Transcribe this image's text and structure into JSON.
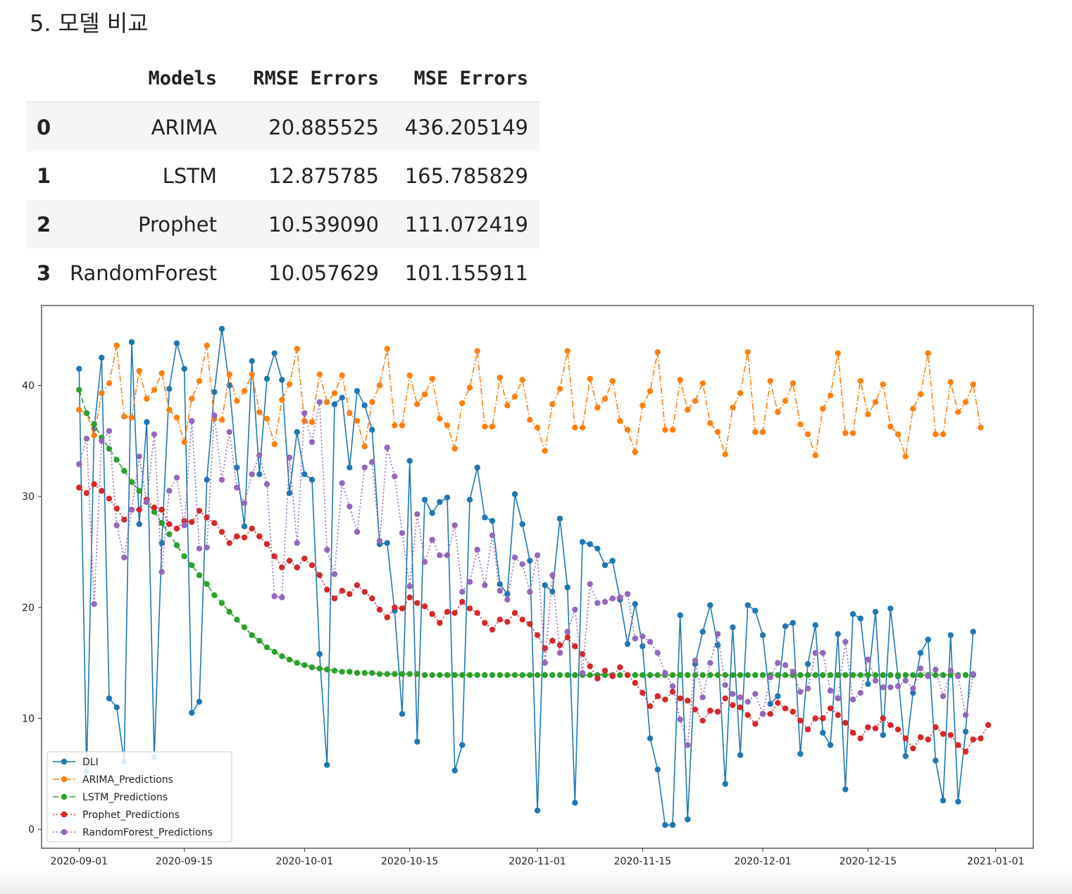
{
  "heading": "5. 모델 비교",
  "results_table": {
    "columns": [
      "Models",
      "RMSE Errors",
      "MSE Errors"
    ],
    "rows": [
      {
        "index": "0",
        "model": "ARIMA",
        "rmse": "20.885525",
        "mse": "436.205149"
      },
      {
        "index": "1",
        "model": "LSTM",
        "rmse": "12.875785",
        "mse": "165.785829"
      },
      {
        "index": "2",
        "model": "Prophet",
        "rmse": "10.539090",
        "mse": "111.072419"
      },
      {
        "index": "3",
        "model": "RandomForest",
        "rmse": "10.057629",
        "mse": "101.155911"
      }
    ]
  },
  "chart_data": {
    "type": "line",
    "title": "",
    "xlabel": "",
    "ylabel": "",
    "xlim": [
      "2020-08-27",
      "2021-01-06"
    ],
    "ylim": [
      -1.7,
      47.2
    ],
    "x_start": "2020-09-01",
    "x_ticks": [
      "2020-09-01",
      "2020-09-15",
      "2020-10-01",
      "2020-10-15",
      "2020-11-01",
      "2020-11-15",
      "2020-12-01",
      "2020-12-15",
      "2021-01-01"
    ],
    "y_ticks": [
      0,
      10,
      20,
      30,
      40
    ],
    "grid": false,
    "legend_position": "lower-left",
    "series": [
      {
        "name": "DLI",
        "color": "#1f77b4",
        "style": "solid",
        "values": [
          41.5,
          5.2,
          36.1,
          42.5,
          11.8,
          11.0,
          6.1,
          43.9,
          27.5,
          36.7,
          6.5,
          25.8,
          39.7,
          43.8,
          41.5,
          10.5,
          11.5,
          31.5,
          39.4,
          45.1,
          40.0,
          32.6,
          27.3,
          42.2,
          32.0,
          40.6,
          42.9,
          40.5,
          30.3,
          35.8,
          32.0,
          31.5,
          15.8,
          5.8,
          38.3,
          38.9,
          32.6,
          39.5,
          38.2,
          36.0,
          25.7,
          25.8,
          19.7,
          10.4,
          33.2,
          7.9,
          29.7,
          28.5,
          29.5,
          29.9,
          5.3,
          7.6,
          29.7,
          32.6,
          28.1,
          27.8,
          22.1,
          21.2,
          30.2,
          27.5,
          24.2,
          1.7,
          22.0,
          21.4,
          28.0,
          21.8,
          2.4,
          25.9,
          25.7,
          25.3,
          23.8,
          24.2,
          20.7,
          16.7,
          20.3,
          16.5,
          8.2,
          5.4,
          0.4,
          0.4,
          19.3,
          0.9,
          14.9,
          17.8,
          20.2,
          16.6,
          4.1,
          18.2,
          6.7,
          20.2,
          19.7,
          17.5,
          11.3,
          12.0,
          18.3,
          18.6,
          6.8,
          14.9,
          18.4,
          8.7,
          7.6,
          17.6,
          3.6,
          19.4,
          19.0,
          13.1,
          19.6,
          8.5,
          19.9,
          13.8,
          6.6,
          12.3,
          15.9,
          17.1,
          6.2,
          2.6,
          17.5,
          2.5,
          8.8,
          17.8
        ]
      },
      {
        "name": "ARIMA_Predictions",
        "color": "#ff7f0e",
        "style": "dashdot",
        "values": [
          37.8,
          37.5,
          35.5,
          39.3,
          40.2,
          43.6,
          37.2,
          37.1,
          41.3,
          38.8,
          39.6,
          41.1,
          37.8,
          37.1,
          34.9,
          38.8,
          40.4,
          43.6,
          37.0,
          36.9,
          41.0,
          38.6,
          39.5,
          41.0,
          37.6,
          37.0,
          34.7,
          38.7,
          40.1,
          43.3,
          36.8,
          36.7,
          41.0,
          38.5,
          39.3,
          40.9,
          37.5,
          36.8,
          34.5,
          38.5,
          40.0,
          43.3,
          36.4,
          36.4,
          40.9,
          38.3,
          39.2,
          40.6,
          37.0,
          36.4,
          34.3,
          38.4,
          39.8,
          43.1,
          36.3,
          36.3,
          40.7,
          38.2,
          39.0,
          40.5,
          36.9,
          36.2,
          34.1,
          38.3,
          39.7,
          43.1,
          36.2,
          36.2,
          40.6,
          38.0,
          38.8,
          40.4,
          36.8,
          36.0,
          34.0,
          38.2,
          39.5,
          43.0,
          36.0,
          36.0,
          40.5,
          37.8,
          38.6,
          40.2,
          36.6,
          35.8,
          33.8,
          38.0,
          39.3,
          43.0,
          35.8,
          35.8,
          40.4,
          37.6,
          38.6,
          40.2,
          36.5,
          35.6,
          33.7,
          37.9,
          39.1,
          42.9,
          35.7,
          35.7,
          40.4,
          37.4,
          38.5,
          40.1,
          36.3,
          35.6,
          33.6,
          37.9,
          39.2,
          42.9,
          35.6,
          35.6,
          40.3,
          37.6,
          38.5,
          40.1,
          36.2
        ]
      },
      {
        "name": "LSTM_Predictions",
        "color": "#2ca02c",
        "style": "dashed",
        "values": [
          39.6,
          37.5,
          36.5,
          35.3,
          34.3,
          33.3,
          32.3,
          31.3,
          30.5,
          29.5,
          28.6,
          27.6,
          26.6,
          25.6,
          24.6,
          23.8,
          22.9,
          22.1,
          21.1,
          20.4,
          19.6,
          18.9,
          18.2,
          17.5,
          17.0,
          16.4,
          16.0,
          15.6,
          15.3,
          15.0,
          14.8,
          14.6,
          14.5,
          14.4,
          14.3,
          14.2,
          14.2,
          14.1,
          14.1,
          14.1,
          14.0,
          14.0,
          14.0,
          14.0,
          14.0,
          14.0,
          13.9,
          13.9,
          13.9,
          13.9,
          13.9,
          13.9,
          13.9,
          13.9,
          13.9,
          13.9,
          13.9,
          13.9,
          13.9,
          13.9,
          13.9,
          13.9,
          13.9,
          13.9,
          13.9,
          13.9,
          13.9,
          13.9,
          13.9,
          13.9,
          13.9,
          13.9,
          13.9,
          13.9,
          13.9,
          13.9,
          13.9,
          13.9,
          13.9,
          13.9,
          13.9,
          13.9,
          13.9,
          13.9,
          13.9,
          13.9,
          13.9,
          13.9,
          13.9,
          13.9,
          13.9,
          13.9,
          13.9,
          13.9,
          13.9,
          13.9,
          13.9,
          13.9,
          13.9,
          13.9,
          13.9,
          13.9,
          13.9,
          13.9,
          13.9,
          13.9,
          13.9,
          13.9,
          13.9,
          13.9,
          13.9,
          13.9,
          13.9,
          13.9,
          13.9,
          13.9,
          13.9,
          13.9,
          13.9,
          13.9
        ]
      },
      {
        "name": "Prophet_Predictions",
        "color": "#d62728",
        "style": "dotted",
        "values": [
          30.8,
          30.3,
          31.1,
          30.5,
          29.8,
          28.9,
          27.9,
          28.8,
          28.8,
          29.7,
          29.0,
          28.8,
          27.5,
          27.1,
          27.8,
          27.7,
          28.7,
          28.1,
          27.6,
          26.8,
          25.8,
          26.4,
          26.3,
          27.1,
          26.4,
          25.7,
          24.6,
          23.6,
          24.2,
          23.6,
          24.4,
          23.8,
          22.9,
          21.6,
          20.8,
          21.5,
          21.2,
          22.0,
          21.4,
          20.8,
          19.8,
          19.1,
          20.0,
          19.9,
          20.9,
          20.4,
          20.1,
          19.4,
          18.6,
          19.6,
          19.5,
          20.5,
          19.9,
          19.5,
          18.6,
          18.0,
          18.9,
          18.7,
          19.5,
          18.9,
          18.5,
          17.5,
          16.3,
          17.0,
          16.6,
          17.3,
          16.5,
          15.8,
          14.7,
          13.6,
          14.3,
          13.8,
          14.6,
          13.9,
          13.2,
          12.3,
          11.1,
          12.0,
          11.7,
          12.4,
          11.8,
          11.6,
          10.8,
          9.8,
          10.7,
          10.6,
          11.8,
          11.2,
          11.0,
          10.3,
          9.5,
          10.4,
          10.4,
          11.4,
          10.9,
          10.6,
          9.8,
          9.0,
          10.0,
          10.0,
          10.9,
          10.3,
          9.6,
          8.7,
          8.2,
          9.2,
          9.1,
          10.0,
          9.4,
          9.0,
          8.2,
          7.3,
          8.3,
          8.1,
          9.2,
          8.6,
          8.5,
          7.6,
          7.0,
          8.1,
          8.2,
          9.4
        ]
      },
      {
        "name": "RandomForest_Predictions",
        "color": "#9467bd",
        "style": "dotted",
        "values": [
          32.9,
          35.2,
          20.3,
          35.0,
          35.9,
          27.4,
          24.5,
          28.8,
          33.6,
          29.5,
          35.6,
          23.2,
          30.5,
          31.7,
          27.4,
          36.8,
          25.3,
          25.4,
          37.3,
          31.5,
          35.8,
          30.8,
          29.4,
          32.0,
          33.7,
          31.1,
          21.0,
          20.9,
          33.5,
          25.8,
          37.5,
          34.9,
          38.5,
          25.2,
          23.0,
          31.2,
          29.1,
          26.8,
          32.6,
          33.1,
          26.0,
          34.4,
          31.8,
          26.7,
          21.9,
          28.4,
          24.1,
          26.1,
          24.7,
          24.7,
          27.4,
          21.4,
          22.3,
          25.2,
          22.0,
          26.5,
          21.5,
          20.7,
          24.5,
          23.9,
          21.4,
          24.7,
          15.0,
          22.9,
          15.9,
          17.8,
          19.8,
          14.1,
          22.1,
          20.4,
          20.5,
          20.8,
          20.9,
          21.2,
          17.2,
          17.4,
          16.9,
          15.9,
          14.1,
          12.9,
          9.9,
          7.6,
          15.2,
          11.9,
          15.0,
          17.6,
          13.0,
          12.2,
          11.9,
          11.5,
          12.2,
          10.4,
          13.7,
          15.0,
          14.8,
          14.2,
          12.4,
          12.7,
          15.9,
          15.9,
          12.5,
          11.8,
          16.9,
          11.7,
          12.3,
          15.3,
          13.4,
          12.8,
          12.8,
          12.9,
          13.4,
          12.7,
          14.5,
          13.8,
          14.4,
          12.0,
          14.3,
          13.8,
          10.3,
          14.0
        ]
      }
    ]
  }
}
